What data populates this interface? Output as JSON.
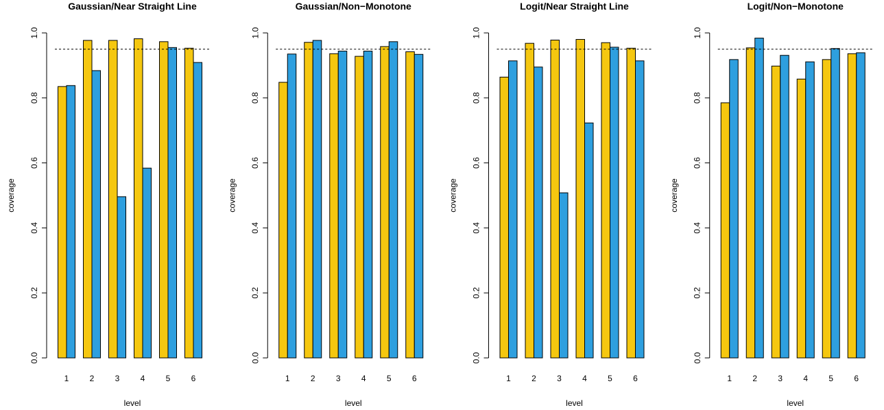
{
  "chart_data": [
    {
      "type": "bar",
      "title": "Gaussian/Near Straight Line",
      "xlabel": "level",
      "ylabel": "coverage",
      "categories": [
        "1",
        "2",
        "3",
        "4",
        "5",
        "6"
      ],
      "ylim": [
        0,
        1
      ],
      "yticks": [
        "0.0",
        "0.2",
        "0.4",
        "0.6",
        "0.8",
        "1.0"
      ],
      "reference_line": 0.95,
      "series": [
        {
          "color": "#F5C710",
          "values": [
            0.835,
            0.977,
            0.977,
            0.982,
            0.973,
            0.953
          ]
        },
        {
          "color": "#2E9FDF",
          "values": [
            0.838,
            0.884,
            0.496,
            0.584,
            0.955,
            0.909
          ]
        }
      ]
    },
    {
      "type": "bar",
      "title": "Gaussian/Non−Monotone",
      "xlabel": "level",
      "ylabel": "coverage",
      "categories": [
        "1",
        "2",
        "3",
        "4",
        "5",
        "6"
      ],
      "ylim": [
        0,
        1
      ],
      "yticks": [
        "0.0",
        "0.2",
        "0.4",
        "0.6",
        "0.8",
        "1.0"
      ],
      "reference_line": 0.95,
      "series": [
        {
          "color": "#F5C710",
          "values": [
            0.848,
            0.971,
            0.936,
            0.928,
            0.958,
            0.942
          ]
        },
        {
          "color": "#2E9FDF",
          "values": [
            0.935,
            0.977,
            0.944,
            0.944,
            0.973,
            0.934
          ]
        }
      ]
    },
    {
      "type": "bar",
      "title": "Logit/Near Straight Line",
      "xlabel": "level",
      "ylabel": "coverage",
      "categories": [
        "1",
        "2",
        "3",
        "4",
        "5",
        "6"
      ],
      "ylim": [
        0,
        1
      ],
      "yticks": [
        "0.0",
        "0.2",
        "0.4",
        "0.6",
        "0.8",
        "1.0"
      ],
      "reference_line": 0.95,
      "series": [
        {
          "color": "#F5C710",
          "values": [
            0.864,
            0.968,
            0.978,
            0.98,
            0.97,
            0.953
          ]
        },
        {
          "color": "#2E9FDF",
          "values": [
            0.914,
            0.895,
            0.508,
            0.723,
            0.956,
            0.914
          ]
        }
      ]
    },
    {
      "type": "bar",
      "title": "Logit/Non−Monotone",
      "xlabel": "level",
      "ylabel": "coverage",
      "categories": [
        "1",
        "2",
        "3",
        "4",
        "5",
        "6"
      ],
      "ylim": [
        0,
        1
      ],
      "yticks": [
        "0.0",
        "0.2",
        "0.4",
        "0.6",
        "0.8",
        "1.0"
      ],
      "reference_line": 0.95,
      "series": [
        {
          "color": "#F5C710",
          "values": [
            0.785,
            0.954,
            0.898,
            0.858,
            0.918,
            0.936
          ]
        },
        {
          "color": "#2E9FDF",
          "values": [
            0.918,
            0.984,
            0.931,
            0.911,
            0.952,
            0.939
          ]
        }
      ]
    }
  ]
}
